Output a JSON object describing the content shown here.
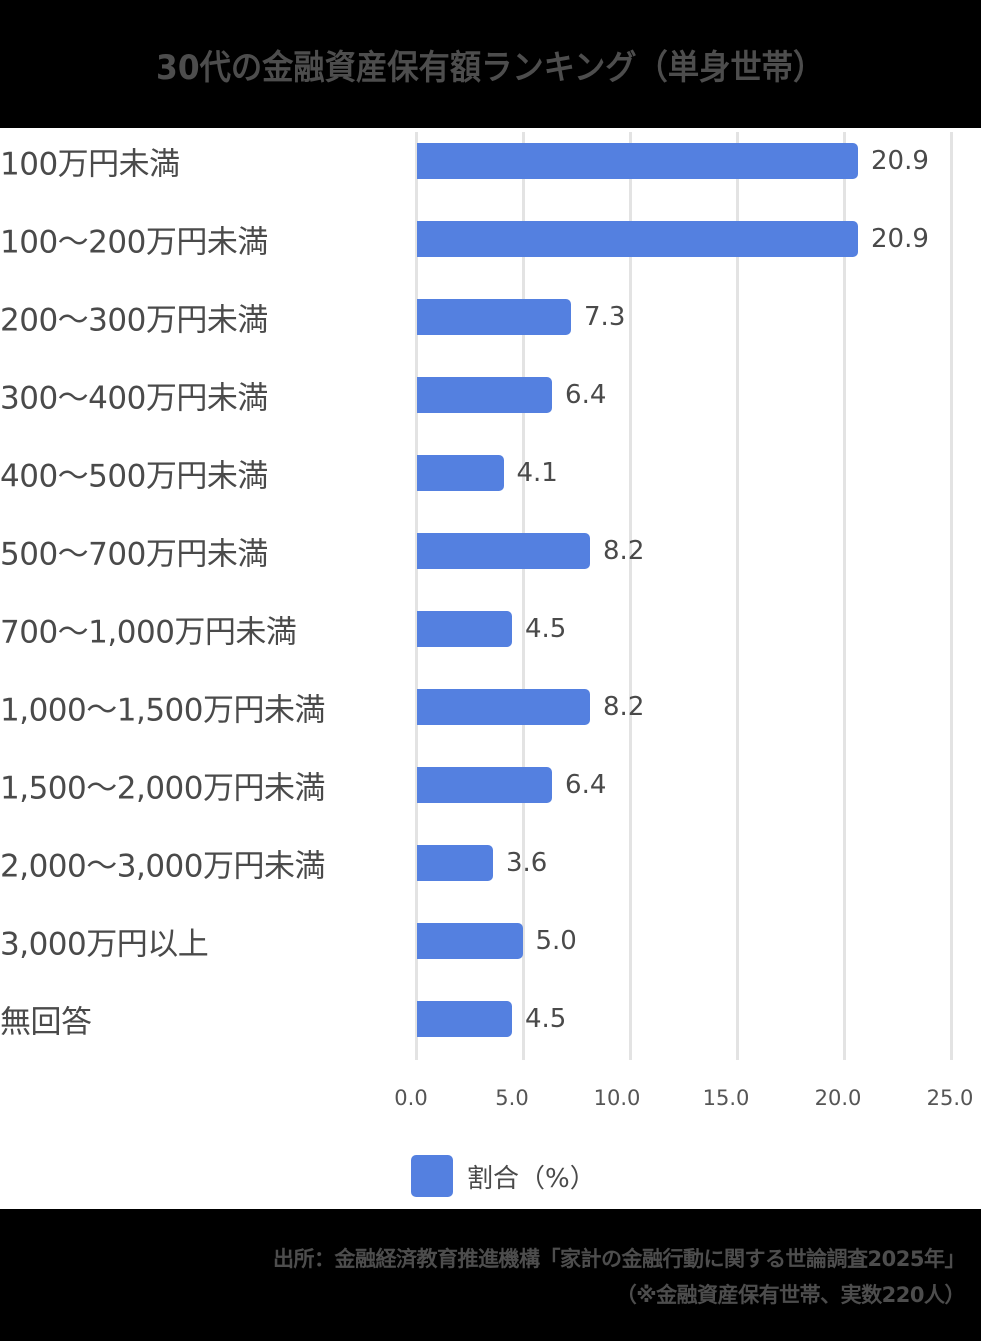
{
  "header": {
    "title": "30代の金融資産保有額ランキング（単身世帯）"
  },
  "colors": {
    "bar": "#5480e0",
    "gridline": "#e3e3e3",
    "text": "#4a4a4a",
    "band": "#000000"
  },
  "chart_data": {
    "type": "bar",
    "orientation": "horizontal",
    "title": "30代の金融資産保有額ランキング（単身世帯）",
    "xlabel": "",
    "ylabel": "",
    "xlim": [
      0,
      25
    ],
    "x_ticks": [
      "0.0",
      "5.0",
      "10.0",
      "15.0",
      "20.0",
      "25.0"
    ],
    "grid": true,
    "legend_position": "bottom",
    "categories": [
      "100万円未満",
      "100〜200万円未満",
      "200〜300万円未満",
      "300〜400万円未満",
      "400〜500万円未満",
      "500〜700万円未満",
      "700〜1,000万円未満",
      "1,000〜1,500万円未満",
      "1,500〜2,000万円未満",
      "2,000〜3,000万円未満",
      "3,000万円以上",
      "無回答"
    ],
    "series": [
      {
        "name": "割合（%）",
        "values": [
          20.9,
          20.9,
          7.3,
          6.4,
          4.1,
          8.2,
          4.5,
          8.2,
          6.4,
          3.6,
          5.0,
          4.5
        ]
      }
    ]
  },
  "rows": [
    {
      "label": "100万円未満",
      "value": "20.9"
    },
    {
      "label": "100〜200万円未満",
      "value": "20.9"
    },
    {
      "label": "200〜300万円未満",
      "value": "7.3"
    },
    {
      "label": "300〜400万円未満",
      "value": "6.4"
    },
    {
      "label": "400〜500万円未満",
      "value": "4.1"
    },
    {
      "label": "500〜700万円未満",
      "value": "8.2"
    },
    {
      "label": "700〜1,000万円未満",
      "value": "4.5"
    },
    {
      "label": "1,000〜1,500万円未満",
      "value": "8.2"
    },
    {
      "label": "1,500〜2,000万円未満",
      "value": "6.4"
    },
    {
      "label": "2,000〜3,000万円未満",
      "value": "3.6"
    },
    {
      "label": "3,000万円以上",
      "value": "5.0"
    },
    {
      "label": "無回答",
      "value": "4.5"
    }
  ],
  "axis": {
    "ticks": [
      "0.0",
      "5.0",
      "10.0",
      "15.0",
      "20.0",
      "25.0"
    ]
  },
  "legend": {
    "label": "割合（%）"
  },
  "footer": {
    "source": "出所：金融経済教育推進機構「家計の金融行動に関する世論調査2025年」",
    "note": "（※金融資産保有世帯、実数220人）"
  }
}
